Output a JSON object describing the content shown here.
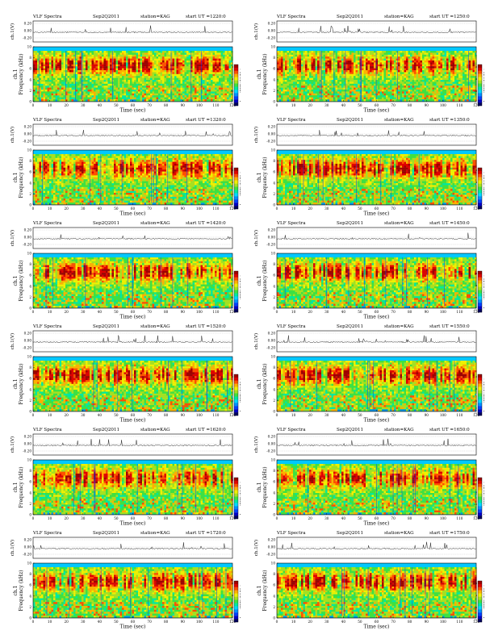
{
  "page": {
    "title": ""
  },
  "panel_template": {
    "title_left": "VLF Spectra",
    "date": "Sep2Q2011",
    "station": "station=KAG",
    "start_prefix": "start  UT  =",
    "ch_label": "ch.1(V)",
    "ch_ticks": [
      "0.20",
      "0.00",
      "-0.20"
    ],
    "ylabel_line1": "ch.1",
    "ylabel_line2": "Frequency  (kHz)",
    "freq_ticks": [
      "0",
      "2",
      "4",
      "6",
      "8",
      "10"
    ],
    "time_ticks": [
      "0",
      "10",
      "20",
      "30",
      "40",
      "50",
      "60",
      "70",
      "80",
      "90",
      "100",
      "110",
      "120"
    ],
    "xlabel": "Time  (sec)",
    "colorbar_label": "log₁₀(PSD)(V²/Hz)",
    "colorbar_ticks": [
      "-8",
      "-9",
      "-10",
      "-11"
    ]
  },
  "chart_data": [
    {
      "type": "heatmap",
      "start_ut": "1220:0",
      "x_range": [
        0,
        120
      ],
      "y_range": [
        0,
        10
      ],
      "xlabel": "Time  (sec)",
      "ylabel": "Frequency  (kHz)",
      "legend": "right colorbar"
    },
    {
      "type": "heatmap",
      "start_ut": "1250:0",
      "x_range": [
        0,
        120
      ],
      "y_range": [
        0,
        10
      ],
      "xlabel": "Time  (sec)",
      "ylabel": "Frequency  (kHz)",
      "legend": "right colorbar"
    },
    {
      "type": "heatmap",
      "start_ut": "1320:0",
      "x_range": [
        0,
        120
      ],
      "y_range": [
        0,
        10
      ],
      "xlabel": "Time  (sec)",
      "ylabel": "Frequency  (kHz)",
      "legend": "right colorbar"
    },
    {
      "type": "heatmap",
      "start_ut": "1350:0",
      "x_range": [
        0,
        120
      ],
      "y_range": [
        0,
        10
      ],
      "xlabel": "Time  (sec)",
      "ylabel": "Frequency  (kHz)",
      "legend": "right colorbar"
    },
    {
      "type": "heatmap",
      "start_ut": "1420:0",
      "x_range": [
        0,
        120
      ],
      "y_range": [
        0,
        10
      ],
      "xlabel": "Time  (sec)",
      "ylabel": "Frequency  (kHz)",
      "legend": "right colorbar"
    },
    {
      "type": "heatmap",
      "start_ut": "1450:0",
      "x_range": [
        0,
        120
      ],
      "y_range": [
        0,
        10
      ],
      "xlabel": "Time  (sec)",
      "ylabel": "Frequency  (kHz)",
      "legend": "right colorbar"
    },
    {
      "type": "heatmap",
      "start_ut": "1520:0",
      "x_range": [
        0,
        120
      ],
      "y_range": [
        0,
        10
      ],
      "xlabel": "Time  (sec)",
      "ylabel": "Frequency  (kHz)",
      "legend": "right colorbar"
    },
    {
      "type": "heatmap",
      "start_ut": "1550:0",
      "x_range": [
        0,
        120
      ],
      "y_range": [
        0,
        10
      ],
      "xlabel": "Time  (sec)",
      "ylabel": "Frequency  (kHz)",
      "legend": "right colorbar"
    },
    {
      "type": "heatmap",
      "start_ut": "1620:0",
      "x_range": [
        0,
        120
      ],
      "y_range": [
        0,
        10
      ],
      "xlabel": "Time  (sec)",
      "ylabel": "Frequency  (kHz)",
      "legend": "right colorbar"
    },
    {
      "type": "heatmap",
      "start_ut": "1650:0",
      "x_range": [
        0,
        120
      ],
      "y_range": [
        0,
        10
      ],
      "xlabel": "Time  (sec)",
      "ylabel": "Frequency  (kHz)",
      "legend": "right colorbar"
    },
    {
      "type": "heatmap",
      "start_ut": "1720:0",
      "x_range": [
        0,
        120
      ],
      "y_range": [
        0,
        10
      ],
      "xlabel": "Time  (sec)",
      "ylabel": "Frequency  (kHz)",
      "legend": "right colorbar"
    },
    {
      "type": "heatmap",
      "start_ut": "1750:0",
      "x_range": [
        0,
        120
      ],
      "y_range": [
        0,
        10
      ],
      "xlabel": "Time  (sec)",
      "ylabel": "Frequency  (kHz)",
      "legend": "right colorbar"
    }
  ],
  "colors": {
    "colormap": [
      "#000060",
      "#0000c8",
      "#0040ff",
      "#0090ff",
      "#00d8ff",
      "#00e8a0",
      "#40e040",
      "#a8e020",
      "#f0f000",
      "#ffb000",
      "#ff5000",
      "#e00000",
      "#a00000"
    ],
    "band_top": "#00c8ff",
    "band_bottom": "#0090e0"
  }
}
